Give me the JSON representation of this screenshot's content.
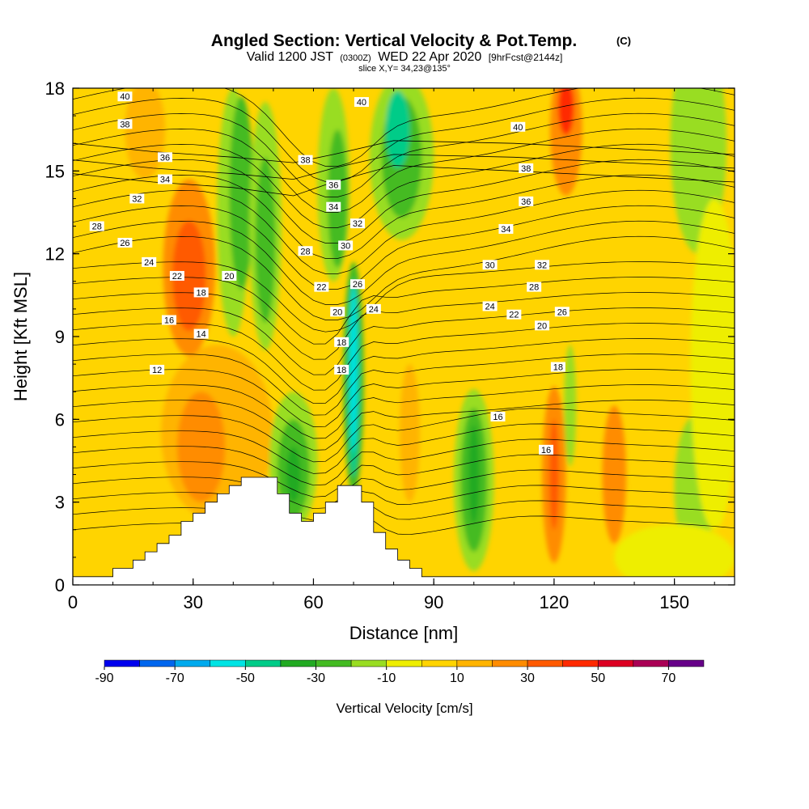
{
  "title": {
    "main": "Angled Section: Vertical Velocity & Pot.Temp.",
    "unit": "(C)",
    "valid_a": "Valid 1200 JST",
    "valid_b": "(0300Z)",
    "valid_c": "WED 22 Apr 2020",
    "valid_d": "[9hrFcst@2144z]",
    "slice": "slice X,Y= 34,23@135°"
  },
  "chart_data": {
    "type": "heatmap",
    "xlabel": "Distance [nm]",
    "ylabel": "Height [Kft MSL]",
    "xlim": [
      0,
      165
    ],
    "ylim": [
      0,
      18
    ],
    "xticks": [
      0,
      30,
      60,
      90,
      120,
      150
    ],
    "yticks": [
      0,
      3,
      6,
      9,
      12,
      15,
      18
    ],
    "colorbar": {
      "label": "Vertical Velocity [cm/s]",
      "tick_labels": [
        "-90",
        "-70",
        "-50",
        "-30",
        "-10",
        "10",
        "30",
        "50",
        "70"
      ],
      "bins": [
        {
          "from": -90,
          "to": -80,
          "color": "#0000ee"
        },
        {
          "from": -80,
          "to": -70,
          "color": "#0066ee"
        },
        {
          "from": -70,
          "to": -60,
          "color": "#00aaee"
        },
        {
          "from": -60,
          "to": -50,
          "color": "#00e4e4"
        },
        {
          "from": -50,
          "to": -40,
          "color": "#00cc88"
        },
        {
          "from": -40,
          "to": -30,
          "color": "#22aa22"
        },
        {
          "from": -30,
          "to": -20,
          "color": "#44bb22"
        },
        {
          "from": -20,
          "to": -10,
          "color": "#99dd22"
        },
        {
          "from": -10,
          "to": 0,
          "color": "#eeee00"
        },
        {
          "from": 0,
          "to": 10,
          "color": "#ffd400"
        },
        {
          "from": 10,
          "to": 20,
          "color": "#ffb400"
        },
        {
          "from": 20,
          "to": 30,
          "color": "#ff8c00"
        },
        {
          "from": 30,
          "to": 40,
          "color": "#ff5a00"
        },
        {
          "from": 40,
          "to": 50,
          "color": "#ff2a00"
        },
        {
          "from": 50,
          "to": 60,
          "color": "#dd0022"
        },
        {
          "from": 60,
          "to": 70,
          "color": "#aa0055"
        },
        {
          "from": 70,
          "to": 80,
          "color": "#660088"
        }
      ]
    },
    "background_bin_color": "#ffd400",
    "velocity_regions": [
      {
        "cx": 36,
        "cy": 5.5,
        "rx": 14,
        "ry": 3.2,
        "color": "#ffb400"
      },
      {
        "cx": 32,
        "cy": 5.0,
        "rx": 6,
        "ry": 2.0,
        "color": "#ff8c00"
      },
      {
        "cx": 29,
        "cy": 11.5,
        "rx": 6.5,
        "ry": 3.2,
        "color": "#ff8c00"
      },
      {
        "cx": 29,
        "cy": 11.2,
        "rx": 4.2,
        "ry": 2.0,
        "color": "#ff5a00"
      },
      {
        "cx": 18,
        "cy": 16.5,
        "rx": 5,
        "ry": 1.8,
        "color": "#ffb400"
      },
      {
        "cx": 40,
        "cy": 13.5,
        "rx": 4,
        "ry": 4.5,
        "color": "#99dd22"
      },
      {
        "cx": 42,
        "cy": 14.2,
        "rx": 3,
        "ry": 3.5,
        "color": "#44bb22"
      },
      {
        "cx": 48,
        "cy": 13.0,
        "rx": 4,
        "ry": 4.5,
        "color": "#99dd22"
      },
      {
        "cx": 48,
        "cy": 12.5,
        "rx": 2.5,
        "ry": 3.0,
        "color": "#44bb22"
      },
      {
        "cx": 55,
        "cy": 4.5,
        "rx": 6,
        "ry": 2.5,
        "color": "#99dd22"
      },
      {
        "cx": 55,
        "cy": 4.2,
        "rx": 4,
        "ry": 1.8,
        "color": "#44bb22"
      },
      {
        "cx": 55,
        "cy": 4.0,
        "rx": 1.8,
        "ry": 1.0,
        "color": "#22aa22"
      },
      {
        "cx": 65,
        "cy": 14.5,
        "rx": 4,
        "ry": 3.5,
        "color": "#99dd22"
      },
      {
        "cx": 66,
        "cy": 14.0,
        "rx": 2.5,
        "ry": 2.5,
        "color": "#44bb22"
      },
      {
        "cx": 70,
        "cy": 7.5,
        "rx": 2.6,
        "ry": 4.2,
        "color": "#44bb22"
      },
      {
        "cx": 70,
        "cy": 7.5,
        "rx": 1.6,
        "ry": 3.6,
        "color": "#00cc88"
      },
      {
        "cx": 70,
        "cy": 7.8,
        "rx": 0.8,
        "ry": 3.0,
        "color": "#00e4e4"
      },
      {
        "cx": 82,
        "cy": 15.5,
        "rx": 8,
        "ry": 3.0,
        "color": "#99dd22"
      },
      {
        "cx": 82,
        "cy": 15.5,
        "rx": 5,
        "ry": 2.2,
        "color": "#44bb22"
      },
      {
        "cx": 81,
        "cy": 16.5,
        "rx": 3,
        "ry": 1.4,
        "color": "#00cc88"
      },
      {
        "cx": 100,
        "cy": 3.8,
        "rx": 5,
        "ry": 3.3,
        "color": "#99dd22"
      },
      {
        "cx": 100,
        "cy": 3.8,
        "rx": 3.3,
        "ry": 2.6,
        "color": "#44bb22"
      },
      {
        "cx": 100,
        "cy": 4.0,
        "rx": 1.4,
        "ry": 1.8,
        "color": "#22aa22"
      },
      {
        "cx": 84,
        "cy": 5.5,
        "rx": 2.5,
        "ry": 2.5,
        "color": "#ffb400"
      },
      {
        "cx": 120,
        "cy": 4.0,
        "rx": 3,
        "ry": 3.2,
        "color": "#ff8c00"
      },
      {
        "cx": 120,
        "cy": 4.0,
        "rx": 1.2,
        "ry": 2.0,
        "color": "#ff5a00"
      },
      {
        "cx": 123,
        "cy": 16.5,
        "rx": 4,
        "ry": 2.4,
        "color": "#ff8c00"
      },
      {
        "cx": 123,
        "cy": 17.3,
        "rx": 2,
        "ry": 1.0,
        "color": "#ff2a00"
      },
      {
        "cx": 124,
        "cy": 6.5,
        "rx": 1.5,
        "ry": 2.2,
        "color": "#99dd22"
      },
      {
        "cx": 135,
        "cy": 4.0,
        "rx": 3,
        "ry": 2.5,
        "color": "#ff8c00"
      },
      {
        "cx": 155,
        "cy": 3.5,
        "rx": 5,
        "ry": 2.6,
        "color": "#99dd22"
      },
      {
        "cx": 156,
        "cy": 16.0,
        "rx": 7,
        "ry": 4.0,
        "color": "#99dd22"
      },
      {
        "cx": 160,
        "cy": 8.0,
        "rx": 6,
        "ry": 6.0,
        "color": "#eeee00"
      },
      {
        "cx": 150,
        "cy": 1.0,
        "rx": 15,
        "ry": 1.2,
        "color": "#eeee00"
      }
    ],
    "terrain": [
      [
        0,
        0.3
      ],
      [
        10,
        0.3
      ],
      [
        10,
        0.6
      ],
      [
        15,
        0.6
      ],
      [
        15,
        0.9
      ],
      [
        18,
        0.9
      ],
      [
        18,
        1.2
      ],
      [
        21,
        1.2
      ],
      [
        21,
        1.5
      ],
      [
        24,
        1.5
      ],
      [
        24,
        1.8
      ],
      [
        27,
        1.8
      ],
      [
        27,
        2.3
      ],
      [
        30,
        2.3
      ],
      [
        30,
        2.6
      ],
      [
        33,
        2.6
      ],
      [
        33,
        3.0
      ],
      [
        36,
        3.0
      ],
      [
        36,
        3.3
      ],
      [
        39,
        3.3
      ],
      [
        39,
        3.6
      ],
      [
        42,
        3.6
      ],
      [
        42,
        3.9
      ],
      [
        51,
        3.9
      ],
      [
        51,
        3.3
      ],
      [
        54,
        3.3
      ],
      [
        54,
        2.6
      ],
      [
        57,
        2.6
      ],
      [
        57,
        2.3
      ],
      [
        60,
        2.3
      ],
      [
        60,
        2.6
      ],
      [
        63,
        2.6
      ],
      [
        63,
        3.0
      ],
      [
        66,
        3.0
      ],
      [
        66,
        3.6
      ],
      [
        72,
        3.6
      ],
      [
        72,
        3.0
      ],
      [
        75,
        3.0
      ],
      [
        75,
        1.9
      ],
      [
        78,
        1.9
      ],
      [
        78,
        1.3
      ],
      [
        81,
        1.3
      ],
      [
        81,
        0.9
      ],
      [
        84,
        0.9
      ],
      [
        84,
        0.6
      ],
      [
        87,
        0.6
      ],
      [
        87,
        0.3
      ],
      [
        165,
        0.3
      ]
    ],
    "isentropes": {
      "levels": [
        12,
        14,
        16,
        18,
        20,
        22,
        24,
        26,
        28,
        30,
        32,
        34,
        36,
        38,
        40
      ],
      "lines_per_level": 2,
      "lines": [
        [
          [
            0,
            14.9
          ],
          [
            20,
            14.6
          ],
          [
            40,
            14.4
          ],
          [
            55,
            14.1
          ],
          [
            65,
            14.6
          ],
          [
            80,
            15.2
          ],
          [
            110,
            15.0
          ],
          [
            165,
            14.6
          ]
        ],
        [
          [
            0,
            15.4
          ],
          [
            20,
            15.1
          ],
          [
            40,
            14.9
          ],
          [
            55,
            14.7
          ],
          [
            65,
            15.1
          ],
          [
            80,
            15.6
          ],
          [
            110,
            15.5
          ],
          [
            165,
            15.1
          ]
        ],
        [
          [
            0,
            16.0
          ],
          [
            20,
            15.7
          ],
          [
            40,
            15.5
          ],
          [
            55,
            15.3
          ],
          [
            65,
            15.6
          ],
          [
            80,
            16.1
          ],
          [
            110,
            16.0
          ],
          [
            165,
            15.6
          ]
        ]
      ]
    },
    "contour_labels": [
      {
        "x": 13,
        "y": 17.7,
        "text": "40"
      },
      {
        "x": 13,
        "y": 16.7,
        "text": "38"
      },
      {
        "x": 23,
        "y": 15.5,
        "text": "36"
      },
      {
        "x": 23,
        "y": 14.7,
        "text": "34"
      },
      {
        "x": 16,
        "y": 14.0,
        "text": "32"
      },
      {
        "x": 6,
        "y": 13.0,
        "text": "28"
      },
      {
        "x": 13,
        "y": 12.4,
        "text": "26"
      },
      {
        "x": 19,
        "y": 11.7,
        "text": "24"
      },
      {
        "x": 26,
        "y": 11.2,
        "text": "22"
      },
      {
        "x": 39,
        "y": 11.2,
        "text": "20"
      },
      {
        "x": 32,
        "y": 10.6,
        "text": "18"
      },
      {
        "x": 24,
        "y": 9.6,
        "text": "16"
      },
      {
        "x": 32,
        "y": 9.1,
        "text": "14"
      },
      {
        "x": 21,
        "y": 7.8,
        "text": "12"
      },
      {
        "x": 72,
        "y": 17.5,
        "text": "40"
      },
      {
        "x": 58,
        "y": 15.4,
        "text": "38"
      },
      {
        "x": 65,
        "y": 14.5,
        "text": "36"
      },
      {
        "x": 65,
        "y": 13.7,
        "text": "34"
      },
      {
        "x": 71,
        "y": 13.1,
        "text": "32"
      },
      {
        "x": 68,
        "y": 12.3,
        "text": "30"
      },
      {
        "x": 58,
        "y": 12.1,
        "text": "28"
      },
      {
        "x": 71,
        "y": 10.9,
        "text": "26"
      },
      {
        "x": 62,
        "y": 10.8,
        "text": "22"
      },
      {
        "x": 75,
        "y": 10.0,
        "text": "24"
      },
      {
        "x": 66,
        "y": 9.9,
        "text": "20"
      },
      {
        "x": 67,
        "y": 8.8,
        "text": "18"
      },
      {
        "x": 67,
        "y": 7.8,
        "text": "18"
      },
      {
        "x": 111,
        "y": 16.6,
        "text": "40"
      },
      {
        "x": 113,
        "y": 15.1,
        "text": "38"
      },
      {
        "x": 113,
        "y": 13.9,
        "text": "36"
      },
      {
        "x": 108,
        "y": 12.9,
        "text": "34"
      },
      {
        "x": 104,
        "y": 11.6,
        "text": "30"
      },
      {
        "x": 117,
        "y": 11.6,
        "text": "32"
      },
      {
        "x": 115,
        "y": 10.8,
        "text": "28"
      },
      {
        "x": 104,
        "y": 10.1,
        "text": "24"
      },
      {
        "x": 110,
        "y": 9.8,
        "text": "22"
      },
      {
        "x": 122,
        "y": 9.9,
        "text": "26"
      },
      {
        "x": 117,
        "y": 9.4,
        "text": "20"
      },
      {
        "x": 121,
        "y": 7.9,
        "text": "18"
      },
      {
        "x": 106,
        "y": 6.1,
        "text": "16"
      },
      {
        "x": 118,
        "y": 4.9,
        "text": "16"
      }
    ]
  }
}
